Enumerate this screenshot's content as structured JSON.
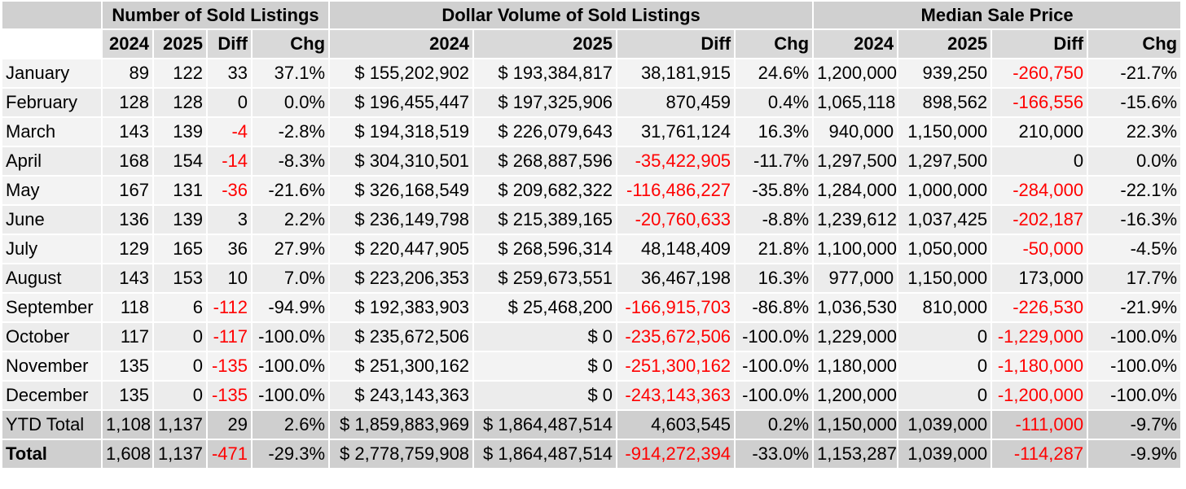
{
  "groups": {
    "sold_listings": "Number of Sold Listings",
    "dollar_volume": "Dollar Volume of Sold Listings",
    "median_price": "Median Sale Price"
  },
  "columns": {
    "y2024": "2024",
    "y2025": "2025",
    "diff": "Diff",
    "chg": "Chg"
  },
  "rows": [
    {
      "label": "January",
      "n24": "89",
      "n25": "122",
      "nd": "33",
      "nc": "37.1%",
      "d24": "$ 155,202,902",
      "d25": "$ 193,384,817",
      "dd": "38,181,915",
      "dc": "24.6%",
      "m24": "1,200,000",
      "m25": "939,250",
      "md": "-260,750",
      "mc": "-21.7%"
    },
    {
      "label": "February",
      "n24": "128",
      "n25": "128",
      "nd": "0",
      "nc": "0.0%",
      "d24": "$ 196,455,447",
      "d25": "$ 197,325,906",
      "dd": "870,459",
      "dc": "0.4%",
      "m24": "1,065,118",
      "m25": "898,562",
      "md": "-166,556",
      "mc": "-15.6%"
    },
    {
      "label": "March",
      "n24": "143",
      "n25": "139",
      "nd": "-4",
      "nc": "-2.8%",
      "d24": "$ 194,318,519",
      "d25": "$ 226,079,643",
      "dd": "31,761,124",
      "dc": "16.3%",
      "m24": "940,000",
      "m25": "1,150,000",
      "md": "210,000",
      "mc": "22.3%"
    },
    {
      "label": "April",
      "n24": "168",
      "n25": "154",
      "nd": "-14",
      "nc": "-8.3%",
      "d24": "$ 304,310,501",
      "d25": "$ 268,887,596",
      "dd": "-35,422,905",
      "dc": "-11.7%",
      "m24": "1,297,500",
      "m25": "1,297,500",
      "md": "0",
      "mc": "0.0%"
    },
    {
      "label": "May",
      "n24": "167",
      "n25": "131",
      "nd": "-36",
      "nc": "-21.6%",
      "d24": "$ 326,168,549",
      "d25": "$ 209,682,322",
      "dd": "-116,486,227",
      "dc": "-35.8%",
      "m24": "1,284,000",
      "m25": "1,000,000",
      "md": "-284,000",
      "mc": "-22.1%"
    },
    {
      "label": "June",
      "n24": "136",
      "n25": "139",
      "nd": "3",
      "nc": "2.2%",
      "d24": "$ 236,149,798",
      "d25": "$ 215,389,165",
      "dd": "-20,760,633",
      "dc": "-8.8%",
      "m24": "1,239,612",
      "m25": "1,037,425",
      "md": "-202,187",
      "mc": "-16.3%"
    },
    {
      "label": "July",
      "n24": "129",
      "n25": "165",
      "nd": "36",
      "nc": "27.9%",
      "d24": "$ 220,447,905",
      "d25": "$ 268,596,314",
      "dd": "48,148,409",
      "dc": "21.8%",
      "m24": "1,100,000",
      "m25": "1,050,000",
      "md": "-50,000",
      "mc": "-4.5%"
    },
    {
      "label": "August",
      "n24": "143",
      "n25": "153",
      "nd": "10",
      "nc": "7.0%",
      "d24": "$ 223,206,353",
      "d25": "$ 259,673,551",
      "dd": "36,467,198",
      "dc": "16.3%",
      "m24": "977,000",
      "m25": "1,150,000",
      "md": "173,000",
      "mc": "17.7%"
    },
    {
      "label": "September",
      "n24": "118",
      "n25": "6",
      "nd": "-112",
      "nc": "-94.9%",
      "d24": "$ 192,383,903",
      "d25": "$ 25,468,200",
      "dd": "-166,915,703",
      "dc": "-86.8%",
      "m24": "1,036,530",
      "m25": "810,000",
      "md": "-226,530",
      "mc": "-21.9%"
    },
    {
      "label": "October",
      "n24": "117",
      "n25": "0",
      "nd": "-117",
      "nc": "-100.0%",
      "d24": "$ 235,672,506",
      "d25": "$ 0",
      "dd": "-235,672,506",
      "dc": "-100.0%",
      "m24": "1,229,000",
      "m25": "0",
      "md": "-1,229,000",
      "mc": "-100.0%"
    },
    {
      "label": "November",
      "n24": "135",
      "n25": "0",
      "nd": "-135",
      "nc": "-100.0%",
      "d24": "$ 251,300,162",
      "d25": "$ 0",
      "dd": "-251,300,162",
      "dc": "-100.0%",
      "m24": "1,180,000",
      "m25": "0",
      "md": "-1,180,000",
      "mc": "-100.0%"
    },
    {
      "label": "December",
      "n24": "135",
      "n25": "0",
      "nd": "-135",
      "nc": "-100.0%",
      "d24": "$ 243,143,363",
      "d25": "$ 0",
      "dd": "-243,143,363",
      "dc": "-100.0%",
      "m24": "1,200,000",
      "m25": "0",
      "md": "-1,200,000",
      "mc": "-100.0%"
    }
  ],
  "ytd": {
    "label": "YTD Total",
    "n24": "1,108",
    "n25": "1,137",
    "nd": "29",
    "nc": "2.6%",
    "d24": "$ 1,859,883,969",
    "d25": "$ 1,864,487,514",
    "dd": "4,603,545",
    "dc": "0.2%",
    "m24": "1,150,000",
    "m25": "1,039,000",
    "md": "-111,000",
    "mc": "-9.7%"
  },
  "total": {
    "label": "Total",
    "n24": "1,608",
    "n25": "1,137",
    "nd": "-471",
    "nc": "-29.3%",
    "d24": "$ 2,778,759,908",
    "d25": "$ 1,864,487,514",
    "dd": "-914,272,394",
    "dc": "-33.0%",
    "m24": "1,153,287",
    "m25": "1,039,000",
    "md": "-114,287",
    "mc": "-9.9%"
  },
  "colors": {
    "negative": "#ff0000",
    "header_bg": "#d0d0d0",
    "total_bg": "#cfcfcf"
  }
}
